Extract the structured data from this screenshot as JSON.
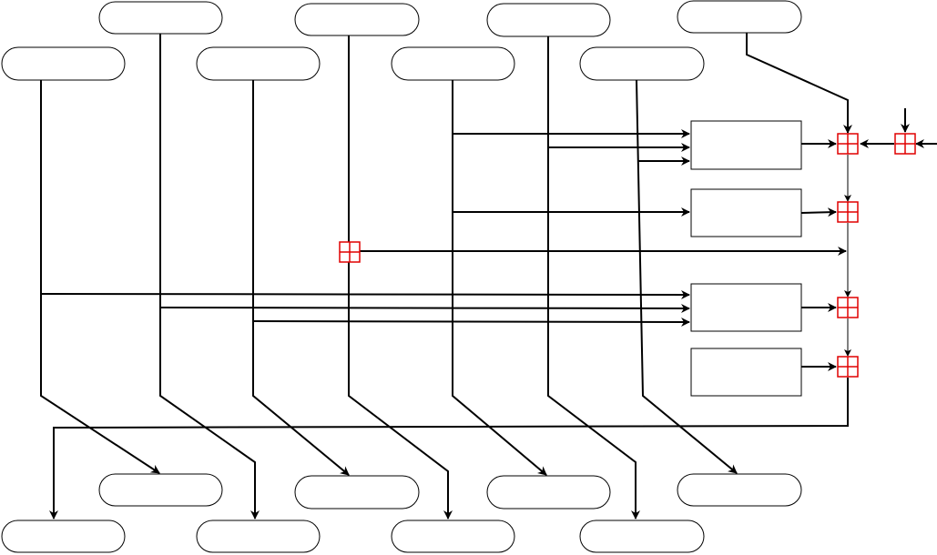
{
  "diagram": {
    "colors": {
      "line": "#000000",
      "summing_junction": "#e00000",
      "node_fill": "#ffffff"
    },
    "top_row_nodes": [
      "",
      "",
      "",
      ""
    ],
    "second_row_nodes": [
      "",
      "",
      "",
      ""
    ],
    "process_blocks": [
      "",
      "",
      "",
      ""
    ],
    "summing_junctions": [
      "",
      "",
      "",
      "",
      "",
      ""
    ],
    "bottom_upper_nodes": [
      "",
      "",
      "",
      ""
    ],
    "bottom_lower_nodes": [
      "",
      "",
      "",
      ""
    ]
  }
}
